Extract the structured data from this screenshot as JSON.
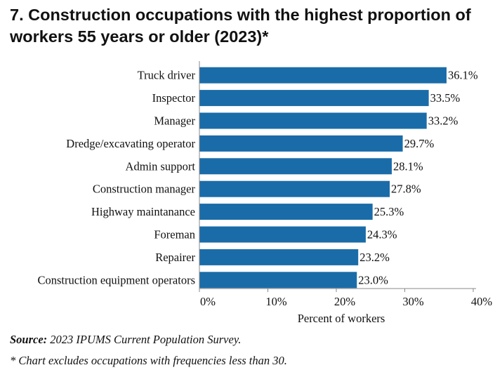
{
  "title": "7. Construction occupations with the highest proportion of workers 55 years or older (2023)*",
  "chart_data": {
    "type": "bar",
    "orientation": "horizontal",
    "categories": [
      "Truck driver",
      "Inspector",
      "Manager",
      "Dredge/excavating operator",
      "Admin support",
      "Construction manager",
      "Highway maintanance",
      "Foreman",
      "Repairer",
      "Construction equipment operators"
    ],
    "values": [
      36.1,
      33.5,
      33.2,
      29.7,
      28.1,
      27.8,
      25.3,
      24.3,
      23.2,
      23.0
    ],
    "value_labels": [
      "36.1%",
      "33.5%",
      "33.2%",
      "29.7%",
      "28.1%",
      "27.8%",
      "25.3%",
      "24.3%",
      "23.2%",
      "23.0%"
    ],
    "xlabel": "Percent of workers",
    "xlim": [
      0,
      40
    ],
    "xticks": [
      0,
      10,
      20,
      30,
      40
    ],
    "xtick_labels": [
      "0%",
      "10%",
      "20%",
      "30%",
      "40%"
    ],
    "bar_color": "#1a6ca8"
  },
  "source": {
    "label": "Source:",
    "text": " 2023 IPUMS Current Population Survey."
  },
  "note": "* Chart excludes occupations with frequencies less than 30."
}
